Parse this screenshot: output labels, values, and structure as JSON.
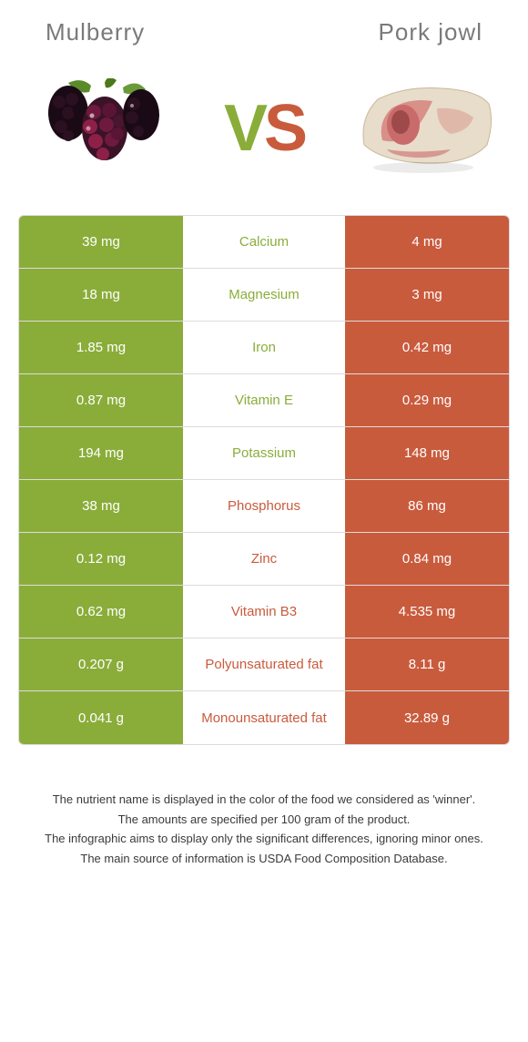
{
  "header": {
    "left_title": "Mulberry",
    "right_title": "Pork jowl"
  },
  "vs": {
    "v": "V",
    "s": "S"
  },
  "colors": {
    "left_bg": "#8aad3a",
    "right_bg": "#c95b3d",
    "left_text": "#ffffff",
    "right_text": "#ffffff",
    "row_border": "#dcdcdc",
    "header_text": "#7a7a7a",
    "footer_text": "#3a3a3a",
    "mulberry_body": "#3a1328",
    "mulberry_highlight": "#8e2048",
    "mulberry_leaf": "#5a8a2a",
    "pork_fat": "#e8dccb",
    "pork_meat": "#c96b6b",
    "pork_dark": "#9e4a4a"
  },
  "rows": [
    {
      "left": "39 mg",
      "label": "Calcium",
      "right": "4 mg",
      "winner": "left"
    },
    {
      "left": "18 mg",
      "label": "Magnesium",
      "right": "3 mg",
      "winner": "left"
    },
    {
      "left": "1.85 mg",
      "label": "Iron",
      "right": "0.42 mg",
      "winner": "left"
    },
    {
      "left": "0.87 mg",
      "label": "Vitamin E",
      "right": "0.29 mg",
      "winner": "left"
    },
    {
      "left": "194 mg",
      "label": "Potassium",
      "right": "148 mg",
      "winner": "left"
    },
    {
      "left": "38 mg",
      "label": "Phosphorus",
      "right": "86 mg",
      "winner": "right"
    },
    {
      "left": "0.12 mg",
      "label": "Zinc",
      "right": "0.84 mg",
      "winner": "right"
    },
    {
      "left": "0.62 mg",
      "label": "Vitamin B3",
      "right": "4.535 mg",
      "winner": "right"
    },
    {
      "left": "0.207 g",
      "label": "Polyunsaturated fat",
      "right": "8.11 g",
      "winner": "right"
    },
    {
      "left": "0.041 g",
      "label": "Monounsaturated fat",
      "right": "32.89 g",
      "winner": "right"
    }
  ],
  "footer": {
    "line1": "The nutrient name is displayed in the color of the food we considered as 'winner'.",
    "line2": "The amounts are specified per 100 gram of the product.",
    "line3": "The infographic aims to display only the significant differences, ignoring minor ones.",
    "line4": "The main source of information is USDA Food Composition Database."
  }
}
